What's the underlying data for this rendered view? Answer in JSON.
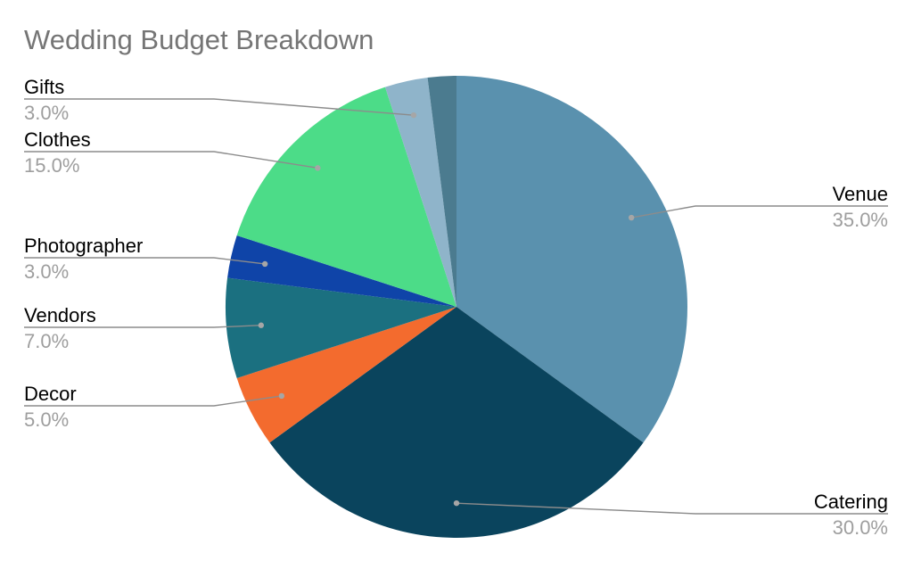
{
  "chart_data": {
    "type": "pie",
    "title": "Wedding Budget Breakdown",
    "slices": [
      {
        "label": "Venue",
        "value": 35.0,
        "pct_text": "35.0%",
        "color": "#5a91ae"
      },
      {
        "label": "Catering",
        "value": 30.0,
        "pct_text": "30.0%",
        "color": "#0a445d"
      },
      {
        "label": "Decor",
        "value": 5.0,
        "pct_text": "5.0%",
        "color": "#f36b2e"
      },
      {
        "label": "Vendors",
        "value": 7.0,
        "pct_text": "7.0%",
        "color": "#1b7080"
      },
      {
        "label": "Photographer",
        "value": 3.0,
        "pct_text": "3.0%",
        "color": "#0f44a8"
      },
      {
        "label": "Clothes",
        "value": 15.0,
        "pct_text": "15.0%",
        "color": "#4cdc88"
      },
      {
        "label": "Gifts",
        "value": 3.0,
        "pct_text": "3.0%",
        "color": "#8fb4ca"
      },
      {
        "label": "",
        "value": 2.0,
        "pct_text": "",
        "color": "#4b7b8f"
      }
    ],
    "legend": "none"
  }
}
